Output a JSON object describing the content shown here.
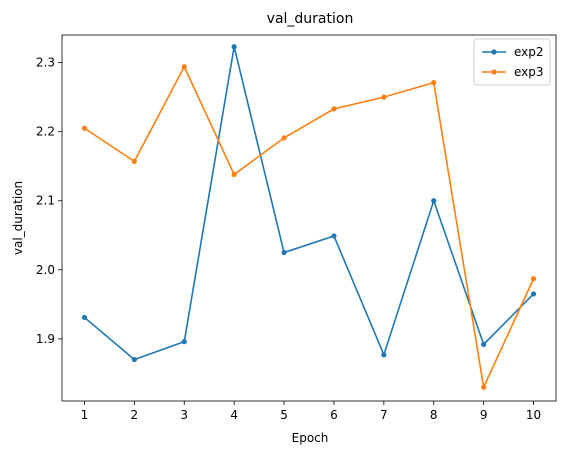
{
  "chart_data": {
    "type": "line",
    "title": "val_duration",
    "xlabel": "Epoch",
    "ylabel": "val_duration",
    "x": [
      1,
      2,
      3,
      4,
      5,
      6,
      7,
      8,
      9,
      10
    ],
    "xticks": [
      "1",
      "2",
      "3",
      "4",
      "5",
      "6",
      "7",
      "8",
      "9",
      "10"
    ],
    "yticks": [
      "1.9",
      "2.0",
      "2.1",
      "2.2",
      "2.3"
    ],
    "ylim": [
      1.81,
      2.34
    ],
    "xlim": [
      0.55,
      10.45
    ],
    "grid": false,
    "legend_position": "top-right",
    "series": [
      {
        "name": "exp2",
        "color": "#1f77b4",
        "values": [
          1.931,
          1.87,
          1.896,
          2.323,
          2.025,
          2.049,
          1.877,
          2.1,
          1.892,
          1.965
        ]
      },
      {
        "name": "exp3",
        "color": "#ff7f0e",
        "values": [
          2.205,
          2.157,
          2.294,
          2.138,
          2.191,
          2.233,
          2.25,
          2.271,
          1.83,
          1.987
        ]
      }
    ]
  }
}
